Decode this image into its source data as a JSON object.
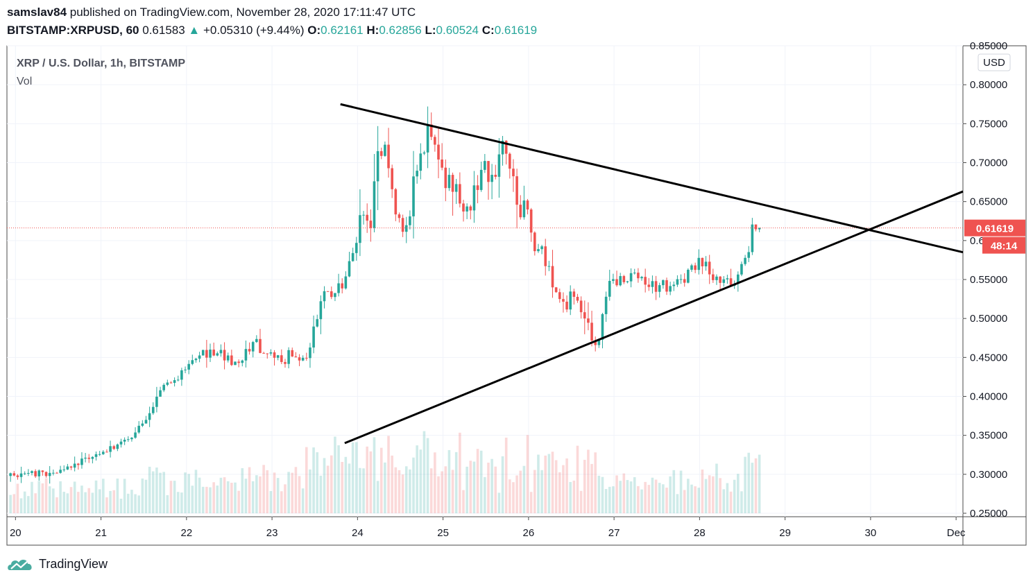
{
  "header": {
    "user": "samslav84",
    "published_text": " published on TradingView.com, November 28, 2020 17:11:47 UTC",
    "symbol": "BITSTAMP:XRPUSD, 60",
    "last": "0.61583",
    "change": "+0.05310 (+9.44%)",
    "o_label": "O:",
    "o_value": "0.62161",
    "h_label": "H:",
    "h_value": "0.62856",
    "l_label": "L:",
    "l_value": "0.60524",
    "c_label": "C:",
    "c_value": "0.61619"
  },
  "legend": {
    "title": "XRP / U.S. Dollar, 1h, BITSTAMP",
    "vol": "Vol"
  },
  "currency_button": "USD",
  "price_tag": "0.61619",
  "countdown_tag": "48:14",
  "footer": {
    "brand": "TradingView"
  },
  "colors": {
    "up": "#26a69a",
    "down": "#ef5350",
    "trendline": "#000000",
    "grid": "#f0f3fa"
  },
  "chart_data": {
    "type": "candlestick",
    "title": "XRP / U.S. Dollar, 1h, BITSTAMP",
    "interval": "1h",
    "ylim": [
      0.25,
      0.85
    ],
    "y_ticks": [
      "0.85000",
      "0.80000",
      "0.75000",
      "0.70000",
      "0.65000",
      "0.60000",
      "0.55000",
      "0.50000",
      "0.45000",
      "0.40000",
      "0.35000",
      "0.30000",
      "0.25000"
    ],
    "x_ticks": [
      "20",
      "21",
      "22",
      "23",
      "24",
      "25",
      "26",
      "27",
      "28",
      "29",
      "30",
      "Dec"
    ],
    "x_tick_values": [
      20,
      21,
      22,
      23,
      24,
      25,
      26,
      27,
      28,
      29,
      30,
      31
    ],
    "x_domain": [
      19.9,
      31.08
    ],
    "last_price": 0.61619,
    "path": [
      [
        19.9,
        0.3
      ],
      [
        20.5,
        0.302
      ],
      [
        20.7,
        0.313
      ],
      [
        21.0,
        0.328
      ],
      [
        21.3,
        0.342
      ],
      [
        21.55,
        0.372
      ],
      [
        21.7,
        0.41
      ],
      [
        21.9,
        0.425
      ],
      [
        22.0,
        0.44
      ],
      [
        22.15,
        0.46
      ],
      [
        22.3,
        0.458
      ],
      [
        22.5,
        0.448
      ],
      [
        22.7,
        0.452
      ],
      [
        22.8,
        0.468
      ],
      [
        23.0,
        0.448
      ],
      [
        23.3,
        0.455
      ],
      [
        23.45,
        0.46
      ],
      [
        23.5,
        0.5
      ],
      [
        23.65,
        0.535
      ],
      [
        23.85,
        0.545
      ],
      [
        24.0,
        0.61
      ],
      [
        24.15,
        0.62
      ],
      [
        24.2,
        0.68
      ],
      [
        24.25,
        0.728
      ],
      [
        24.4,
        0.69
      ],
      [
        24.45,
        0.64
      ],
      [
        24.6,
        0.62
      ],
      [
        24.65,
        0.67
      ],
      [
        24.75,
        0.7
      ],
      [
        24.82,
        0.74
      ],
      [
        24.95,
        0.695
      ],
      [
        25.1,
        0.665
      ],
      [
        25.3,
        0.655
      ],
      [
        25.55,
        0.69
      ],
      [
        25.7,
        0.71
      ],
      [
        25.85,
        0.66
      ],
      [
        26.0,
        0.625
      ],
      [
        26.15,
        0.59
      ],
      [
        26.3,
        0.52
      ],
      [
        26.5,
        0.53
      ],
      [
        26.7,
        0.485
      ],
      [
        26.8,
        0.47
      ],
      [
        26.95,
        0.54
      ],
      [
        27.1,
        0.548
      ],
      [
        27.3,
        0.555
      ],
      [
        27.5,
        0.538
      ],
      [
        27.75,
        0.548
      ],
      [
        28.0,
        0.572
      ],
      [
        28.2,
        0.555
      ],
      [
        28.4,
        0.55
      ],
      [
        28.5,
        0.565
      ],
      [
        28.55,
        0.58
      ],
      [
        28.62,
        0.622
      ],
      [
        28.7,
        0.616
      ]
    ],
    "volume_ylim": [
      0,
      0.4
    ],
    "volume_baseline_price": 0.25,
    "volume_max_price": 0.4,
    "trendlines": [
      {
        "name": "descending-resistance",
        "points": [
          [
            23.8,
            0.775
          ],
          [
            31.08,
            0.585
          ]
        ]
      },
      {
        "name": "ascending-support",
        "points": [
          [
            23.85,
            0.34
          ],
          [
            31.08,
            0.663
          ]
        ]
      }
    ]
  }
}
